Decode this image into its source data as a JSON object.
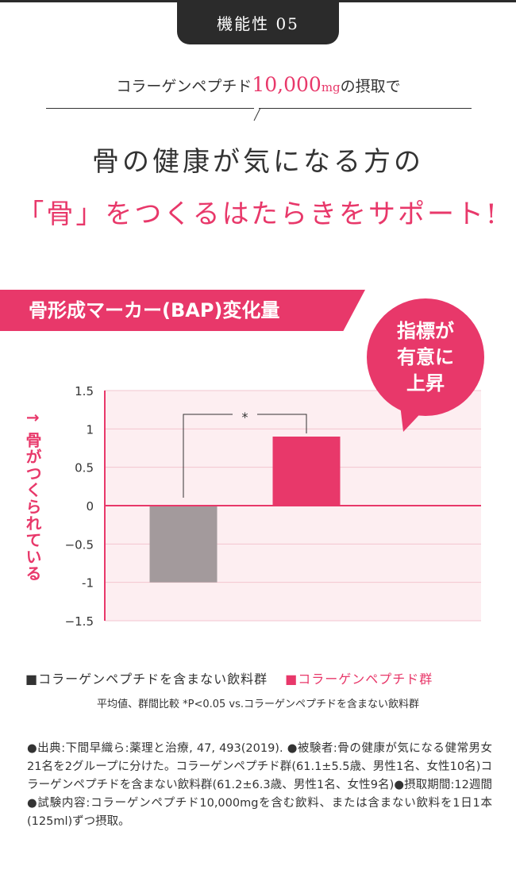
{
  "header": {
    "tab_label": "機能性 05",
    "subtitle_pre": "コラーゲンペプチド",
    "subtitle_amount": "10,000",
    "subtitle_unit": "mg",
    "subtitle_post": "の摂取で",
    "headline": "骨の健康が気になる方の",
    "headline_accent": "「骨」をつくるはたらきをサポート!"
  },
  "ribbon_title": "骨形成マーカー(BAP)変化量",
  "bubble": {
    "line1": "指標が",
    "line2": "有意に",
    "line3": "上昇"
  },
  "chart_data": {
    "type": "bar",
    "categories": [
      "コラーゲンペプチドを含まない飲料群",
      "コラーゲンペプチド群"
    ],
    "values": [
      -1.0,
      0.9
    ],
    "colors": [
      "#a39a9c",
      "#e8386a"
    ],
    "ylabel": "↑ 骨がつくられている",
    "ylim": [
      -1.5,
      1.5
    ],
    "yticks": [
      "1.5",
      "1",
      "0.5",
      "0",
      "−0.5",
      "-1",
      "−1.5"
    ],
    "significance": "*",
    "grid": true,
    "background": "#fdeef1"
  },
  "legend": {
    "item1": "■コラーゲンペプチドを含まない飲料群",
    "item2": "■コラーゲンペプチド群"
  },
  "note": "平均値、群間比較 *P<0.05 vs.コラーゲンペプチドを含まない飲料群",
  "reference": "●出典:下間早織ら:薬理と治療, 47, 493(2019). ●被験者:骨の健康が気になる健常男女21名を2グループに分けた。コラーゲンペプチド群(61.1±5.5歳、男性1名、女性10名)コラーゲンペプチドを含まない飲料群(61.2±6.3歳、男性1名、女性9名)●摂取期間:12週間●試験内容:コラーゲンペプチド10,000mgを含む飲料、または含まない飲料を1日1本(125ml)ずつ摂取。"
}
